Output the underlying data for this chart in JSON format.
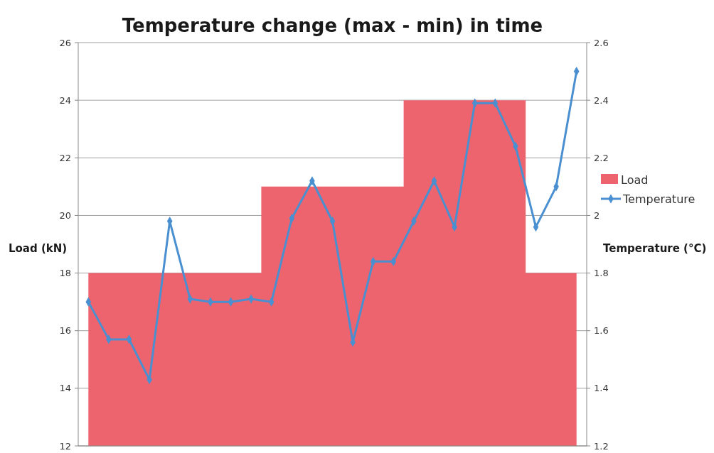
{
  "chart_data": {
    "type": "line",
    "title": "Temperature change (max - min) in time",
    "ylabel": "Load (kN)",
    "y2label": "Temperature (°C)",
    "categories": [
      null,
      null,
      null,
      null,
      null,
      null,
      null,
      null,
      null,
      null,
      null,
      null,
      null,
      null,
      null,
      null,
      null,
      null,
      null,
      null,
      null,
      null,
      null,
      null,
      null
    ],
    "series": [
      {
        "name": "Load",
        "type": "area",
        "color": "#ee646e",
        "values": [
          18,
          18,
          18,
          18,
          18,
          18,
          18,
          18,
          18,
          21,
          21,
          21,
          21,
          21,
          21,
          21,
          24,
          24,
          24,
          24,
          24,
          24,
          18,
          18,
          18
        ]
      },
      {
        "name": "Temperature",
        "axis": "y2",
        "color": "#4a8fd0",
        "marker": "diamond",
        "values": [
          1.7,
          1.57,
          1.57,
          1.43,
          1.98,
          1.71,
          1.7,
          1.7,
          1.71,
          1.7,
          1.99,
          2.12,
          1.98,
          1.56,
          1.84,
          1.84,
          1.98,
          2.12,
          1.96,
          2.39,
          2.39,
          2.24,
          1.96,
          2.1,
          2.5
        ]
      }
    ],
    "ylim": [
      12,
      26
    ],
    "yticks": [
      12,
      14,
      16,
      18,
      20,
      22,
      24,
      26
    ],
    "y2lim": [
      1.2,
      2.6
    ],
    "y2ticks": [
      1.2,
      1.4,
      1.6,
      1.8,
      2,
      2.2,
      2.4,
      2.6
    ],
    "grid": "y",
    "legend": "right",
    "tick_labels": "y"
  }
}
